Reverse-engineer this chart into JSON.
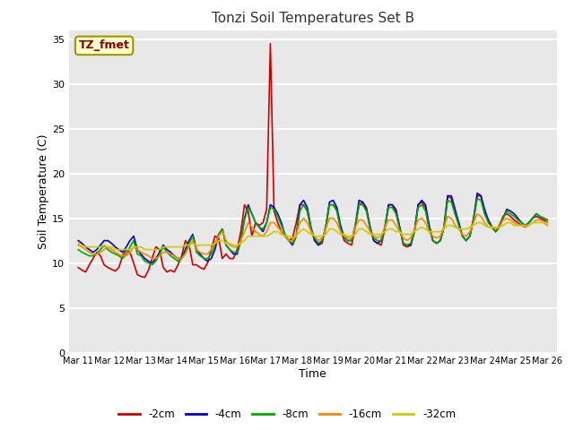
{
  "title": "Tonzi Soil Temperatures Set B",
  "xlabel": "Time",
  "ylabel": "Soil Temperature (C)",
  "ylim": [
    0,
    36
  ],
  "yticks": [
    0,
    5,
    10,
    15,
    20,
    25,
    30,
    35
  ],
  "annotation": "TZ_fmet",
  "bg_color": "#ffffff",
  "plot_bg_color": "#e8e8e8",
  "grid_color": "#f5f5f5",
  "line_colors": {
    "-2cm": "#cc0000",
    "-4cm": "#0000cc",
    "-8cm": "#00aa00",
    "-16cm": "#ff8800",
    "-32cm": "#cccc00"
  },
  "start_day": 11,
  "end_day": 26,
  "points_per_day": 8,
  "series": {
    "-2cm": [
      9.5,
      9.2,
      9.0,
      9.8,
      10.5,
      11.2,
      10.8,
      9.8,
      9.5,
      9.3,
      9.1,
      9.5,
      10.8,
      11.5,
      11.2,
      10.0,
      8.7,
      8.5,
      8.4,
      9.2,
      10.5,
      11.8,
      11.5,
      9.5,
      9.0,
      9.2,
      9.0,
      9.8,
      10.8,
      12.5,
      12.0,
      9.8,
      9.8,
      9.5,
      9.3,
      10.0,
      11.5,
      13.0,
      12.8,
      10.5,
      11.0,
      10.5,
      10.5,
      11.5,
      13.5,
      16.5,
      15.8,
      13.0,
      14.5,
      14.2,
      14.5,
      16.0,
      34.5,
      15.8,
      14.5,
      13.5,
      13.0,
      12.5,
      12.8,
      14.5,
      16.5,
      16.5,
      15.8,
      13.8,
      12.5,
      12.0,
      12.2,
      14.0,
      16.5,
      16.5,
      16.0,
      13.8,
      12.5,
      12.2,
      12.0,
      14.0,
      16.5,
      16.8,
      16.2,
      14.0,
      12.5,
      12.2,
      12.0,
      13.8,
      16.5,
      16.5,
      16.0,
      14.0,
      12.0,
      11.8,
      12.0,
      13.5,
      16.5,
      16.8,
      16.2,
      14.0,
      12.5,
      12.2,
      12.5,
      14.0,
      17.5,
      17.2,
      15.5,
      14.5,
      13.0,
      12.5,
      13.0,
      15.0,
      17.5,
      17.5,
      15.5,
      14.8,
      14.0,
      13.5,
      14.2,
      15.2,
      15.5,
      15.2,
      14.8,
      14.5,
      14.2,
      14.0,
      14.5,
      15.0,
      15.2,
      15.0,
      14.8,
      14.5
    ],
    "-4cm": [
      12.5,
      12.2,
      11.8,
      11.5,
      11.2,
      11.5,
      12.0,
      12.5,
      12.5,
      12.2,
      11.8,
      11.5,
      11.2,
      11.8,
      12.5,
      13.0,
      11.5,
      11.0,
      10.5,
      10.2,
      10.0,
      10.5,
      11.2,
      12.0,
      11.5,
      11.2,
      10.8,
      10.5,
      10.5,
      11.5,
      12.5,
      13.2,
      11.5,
      11.0,
      10.5,
      10.2,
      10.5,
      11.5,
      13.2,
      13.8,
      12.0,
      11.5,
      11.0,
      11.0,
      12.5,
      15.0,
      16.5,
      15.5,
      14.5,
      14.0,
      13.5,
      14.5,
      16.5,
      16.2,
      15.5,
      14.5,
      13.0,
      12.5,
      12.0,
      13.0,
      16.5,
      17.0,
      16.2,
      14.0,
      12.5,
      12.0,
      12.5,
      14.0,
      16.8,
      17.0,
      16.2,
      14.2,
      12.8,
      12.5,
      12.5,
      14.2,
      17.0,
      16.8,
      16.0,
      14.0,
      12.5,
      12.2,
      12.5,
      14.0,
      16.5,
      16.5,
      15.8,
      14.0,
      12.2,
      12.0,
      12.0,
      13.5,
      16.5,
      17.0,
      16.5,
      14.2,
      12.5,
      12.2,
      12.5,
      14.0,
      17.5,
      17.5,
      16.0,
      14.5,
      13.0,
      12.5,
      13.0,
      14.8,
      17.8,
      17.5,
      16.0,
      14.8,
      14.0,
      13.5,
      14.0,
      15.0,
      16.0,
      15.8,
      15.5,
      15.0,
      14.5,
      14.2,
      14.5,
      15.0,
      15.5,
      15.2,
      15.0,
      14.8
    ],
    "-8cm": [
      11.5,
      11.2,
      11.0,
      10.8,
      10.8,
      11.0,
      11.5,
      12.0,
      11.5,
      11.2,
      11.0,
      10.8,
      10.5,
      11.0,
      11.8,
      12.5,
      11.0,
      10.8,
      10.2,
      10.0,
      9.8,
      10.2,
      11.0,
      11.8,
      11.2,
      10.8,
      10.5,
      10.2,
      10.5,
      11.2,
      12.2,
      13.0,
      11.2,
      10.8,
      10.5,
      10.5,
      11.0,
      12.0,
      13.2,
      13.8,
      12.0,
      11.5,
      11.2,
      11.2,
      12.5,
      14.8,
      16.2,
      15.5,
      14.5,
      14.0,
      13.8,
      14.5,
      16.2,
      16.0,
      15.2,
      14.2,
      13.2,
      12.5,
      12.2,
      13.0,
      15.8,
      16.5,
      15.8,
      13.8,
      12.8,
      12.2,
      12.5,
      14.0,
      16.5,
      16.5,
      15.8,
      13.8,
      12.8,
      12.5,
      12.5,
      14.2,
      16.5,
      16.5,
      15.8,
      13.8,
      12.8,
      12.5,
      12.5,
      14.0,
      16.2,
      16.2,
      15.5,
      13.8,
      12.2,
      12.0,
      12.2,
      13.5,
      16.2,
      16.5,
      15.8,
      13.8,
      12.5,
      12.2,
      12.5,
      14.0,
      17.0,
      16.8,
      15.5,
      14.2,
      13.0,
      12.5,
      13.0,
      14.8,
      17.2,
      17.0,
      15.5,
      14.5,
      14.0,
      13.5,
      14.0,
      15.0,
      15.8,
      15.5,
      15.2,
      14.8,
      14.5,
      14.2,
      14.5,
      15.0,
      15.5,
      15.2,
      15.0,
      14.8
    ],
    "-16cm": [
      12.0,
      11.8,
      11.5,
      11.2,
      11.0,
      11.0,
      11.2,
      11.5,
      11.8,
      11.5,
      11.2,
      11.0,
      10.8,
      10.8,
      11.2,
      11.8,
      11.5,
      11.2,
      11.0,
      10.8,
      10.5,
      10.5,
      10.8,
      11.2,
      11.2,
      11.0,
      10.8,
      10.5,
      10.5,
      11.0,
      11.8,
      12.5,
      11.5,
      11.2,
      11.0,
      11.0,
      11.5,
      12.2,
      13.0,
      13.5,
      12.5,
      12.0,
      11.8,
      11.8,
      12.5,
      13.5,
      14.5,
      14.0,
      13.5,
      13.2,
      13.0,
      13.5,
      14.5,
      14.5,
      14.0,
      13.5,
      13.0,
      12.5,
      12.5,
      13.2,
      14.5,
      15.0,
      14.5,
      13.5,
      13.0,
      12.5,
      12.8,
      13.8,
      15.0,
      15.0,
      14.5,
      13.5,
      13.0,
      12.8,
      12.8,
      14.0,
      14.8,
      14.8,
      14.2,
      13.5,
      13.0,
      12.8,
      13.0,
      14.0,
      14.8,
      14.8,
      14.2,
      13.5,
      12.8,
      12.5,
      12.8,
      13.8,
      14.8,
      15.0,
      14.5,
      13.5,
      13.0,
      12.8,
      13.0,
      14.0,
      15.2,
      15.0,
      14.2,
      13.8,
      13.2,
      13.0,
      13.5,
      14.5,
      15.5,
      15.2,
      14.5,
      14.0,
      14.0,
      13.8,
      14.0,
      14.8,
      15.0,
      14.8,
      14.5,
      14.2,
      14.2,
      14.0,
      14.2,
      14.5,
      14.8,
      14.8,
      14.5,
      14.2
    ],
    "-32cm": [
      12.2,
      12.0,
      11.8,
      11.8,
      11.8,
      11.8,
      11.8,
      12.0,
      11.8,
      11.8,
      11.5,
      11.5,
      11.5,
      11.5,
      11.5,
      11.8,
      11.8,
      11.8,
      11.5,
      11.5,
      11.5,
      11.5,
      11.5,
      11.8,
      11.8,
      11.8,
      11.8,
      11.8,
      11.8,
      12.0,
      12.0,
      12.2,
      12.0,
      12.0,
      12.0,
      12.0,
      12.0,
      12.2,
      12.5,
      12.5,
      12.2,
      12.2,
      12.0,
      12.0,
      12.2,
      12.5,
      13.0,
      13.0,
      13.0,
      13.0,
      13.0,
      13.0,
      13.2,
      13.5,
      13.5,
      13.2,
      13.0,
      13.0,
      12.8,
      13.0,
      13.5,
      13.8,
      13.5,
      13.2,
      13.0,
      13.0,
      13.0,
      13.2,
      13.8,
      13.8,
      13.5,
      13.2,
      13.2,
      13.0,
      13.0,
      13.2,
      13.8,
      13.8,
      13.5,
      13.2,
      13.2,
      13.2,
      13.2,
      13.5,
      13.8,
      13.8,
      13.5,
      13.5,
      13.2,
      13.2,
      13.2,
      13.5,
      13.8,
      14.0,
      13.8,
      13.5,
      13.5,
      13.5,
      13.5,
      13.8,
      14.2,
      14.2,
      14.0,
      13.8,
      13.8,
      13.8,
      14.0,
      14.2,
      14.5,
      14.5,
      14.2,
      14.0,
      14.0,
      14.0,
      14.0,
      14.2,
      14.5,
      14.5,
      14.2,
      14.2,
      14.2,
      14.2,
      14.2,
      14.5,
      14.5,
      14.5,
      14.5,
      14.5
    ]
  }
}
